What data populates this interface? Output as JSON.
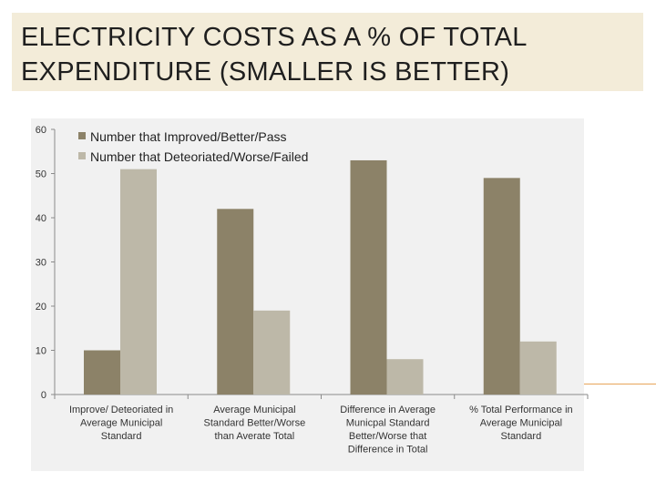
{
  "slide": {
    "title_line1": "ELECTRICITY COSTS AS A % OF TOTAL",
    "title_line2": "EXPENDITURE (SMALLER IS BETTER)"
  },
  "chart_data": {
    "type": "bar",
    "title": "",
    "xlabel": "",
    "ylabel": "",
    "ylim": [
      0,
      60
    ],
    "yticks": [
      0,
      10,
      20,
      30,
      40,
      50,
      60
    ],
    "grid": false,
    "legend_position": "top-left",
    "categories": [
      [
        "Improve/ Deteoriated in",
        "Average Municipal",
        "Standard"
      ],
      [
        "Average Municipal",
        "Standard Better/Worse",
        "than Averate Total"
      ],
      [
        "Difference in Average",
        "Municpal Standard",
        "Better/Worse that",
        "Difference in Total"
      ],
      [
        "% Total Performance in",
        "Average Municipal",
        "Standard"
      ]
    ],
    "series": [
      {
        "name": "Number that Improved/Better/Pass",
        "color": "#8c8268",
        "values": [
          10,
          42,
          53,
          49
        ]
      },
      {
        "name": "Number that Deteoriated/Worse/Failed",
        "color": "#bdb8a8",
        "values": [
          51,
          19,
          8,
          12
        ]
      }
    ]
  }
}
